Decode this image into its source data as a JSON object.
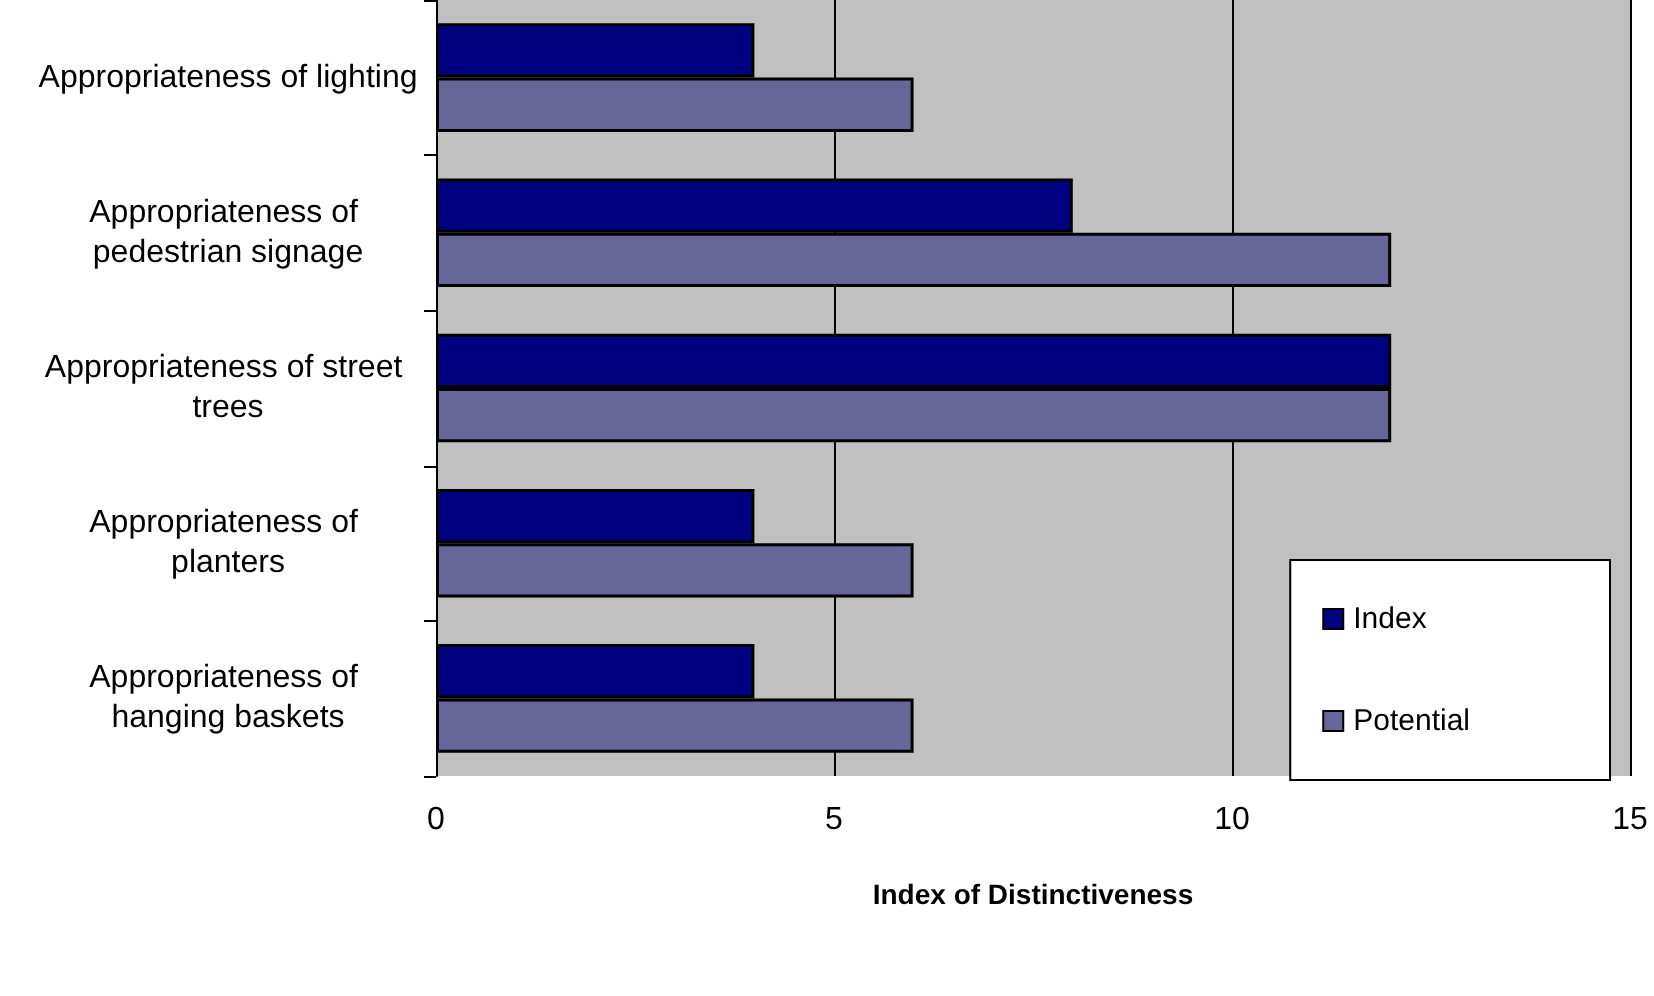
{
  "chart_data": {
    "type": "bar",
    "orientation": "horizontal",
    "xlabel": "Index of Distinctiveness",
    "categories": [
      "Appropriateness of lighting",
      "Appropriateness of pedestrian signage",
      "Appropriateness of street trees",
      "Appropriateness of planters",
      "Appropriateness of hanging baskets"
    ],
    "series": [
      {
        "name": "Index",
        "color": "#000080",
        "values": [
          4,
          8,
          12,
          4,
          4
        ]
      },
      {
        "name": "Potential",
        "color": "#666699",
        "values": [
          6,
          12,
          12,
          6,
          6
        ]
      }
    ],
    "xlim": [
      0,
      15
    ],
    "xticks": [
      0,
      5,
      10,
      15
    ],
    "grid": "x",
    "legend": "bottom right"
  }
}
